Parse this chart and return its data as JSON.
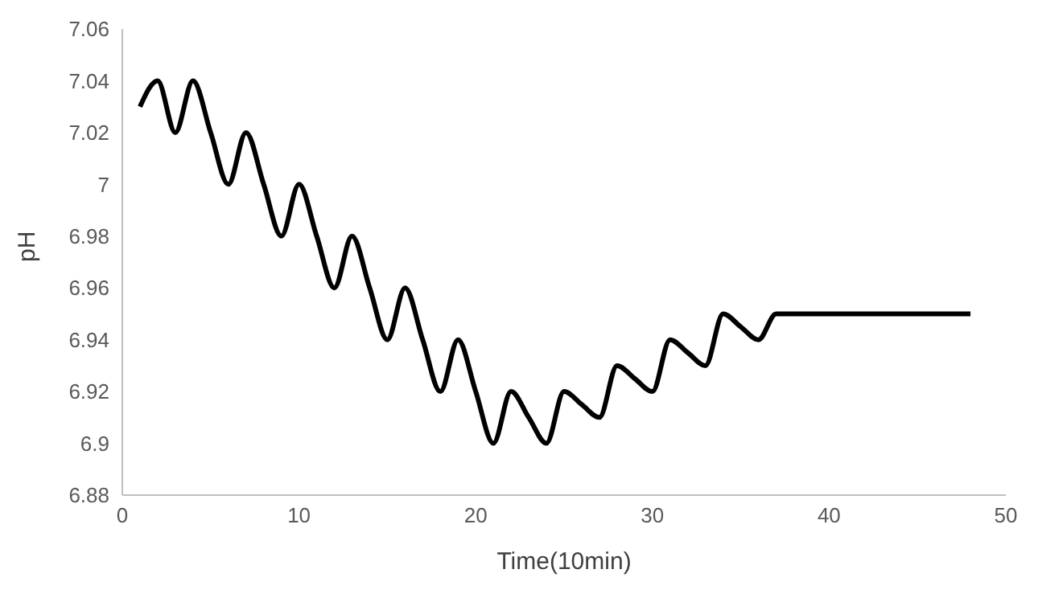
{
  "chart_data": {
    "type": "line",
    "xlabel": "Time(10min)",
    "ylabel": "pH",
    "x": [
      1,
      2,
      3,
      4,
      5,
      6,
      7,
      8,
      9,
      10,
      11,
      12,
      13,
      14,
      15,
      16,
      17,
      18,
      19,
      20,
      21,
      22,
      23,
      24,
      25,
      26,
      27,
      28,
      29,
      30,
      31,
      32,
      33,
      34,
      35,
      36,
      37,
      38,
      39,
      40,
      41,
      42,
      43,
      44,
      45,
      46,
      47,
      48
    ],
    "series": [
      {
        "color": "#000000",
        "values": [
          7.03,
          7.04,
          7.02,
          7.04,
          7.02,
          7.0,
          7.02,
          7.0,
          6.98,
          7.0,
          6.98,
          6.96,
          6.98,
          6.96,
          6.94,
          6.96,
          6.94,
          6.92,
          6.94,
          6.92,
          6.9,
          6.92,
          6.91,
          6.9,
          6.92,
          6.915,
          6.91,
          6.93,
          6.925,
          6.92,
          6.94,
          6.935,
          6.93,
          6.95,
          6.945,
          6.94,
          6.95,
          6.95,
          6.95,
          6.95,
          6.95,
          6.95,
          6.95,
          6.95,
          6.95,
          6.95,
          6.95,
          6.95
        ]
      }
    ],
    "xlim": [
      0,
      50
    ],
    "xticks": [
      0,
      10,
      20,
      30,
      40,
      50
    ],
    "ylim": [
      6.88,
      7.06
    ],
    "yticks": [
      6.88,
      6.9,
      6.92,
      6.94,
      6.96,
      6.98,
      7,
      7.02,
      7.04,
      7.06
    ],
    "grid": false,
    "legend": false,
    "marker": "none",
    "line_style": "solid"
  }
}
